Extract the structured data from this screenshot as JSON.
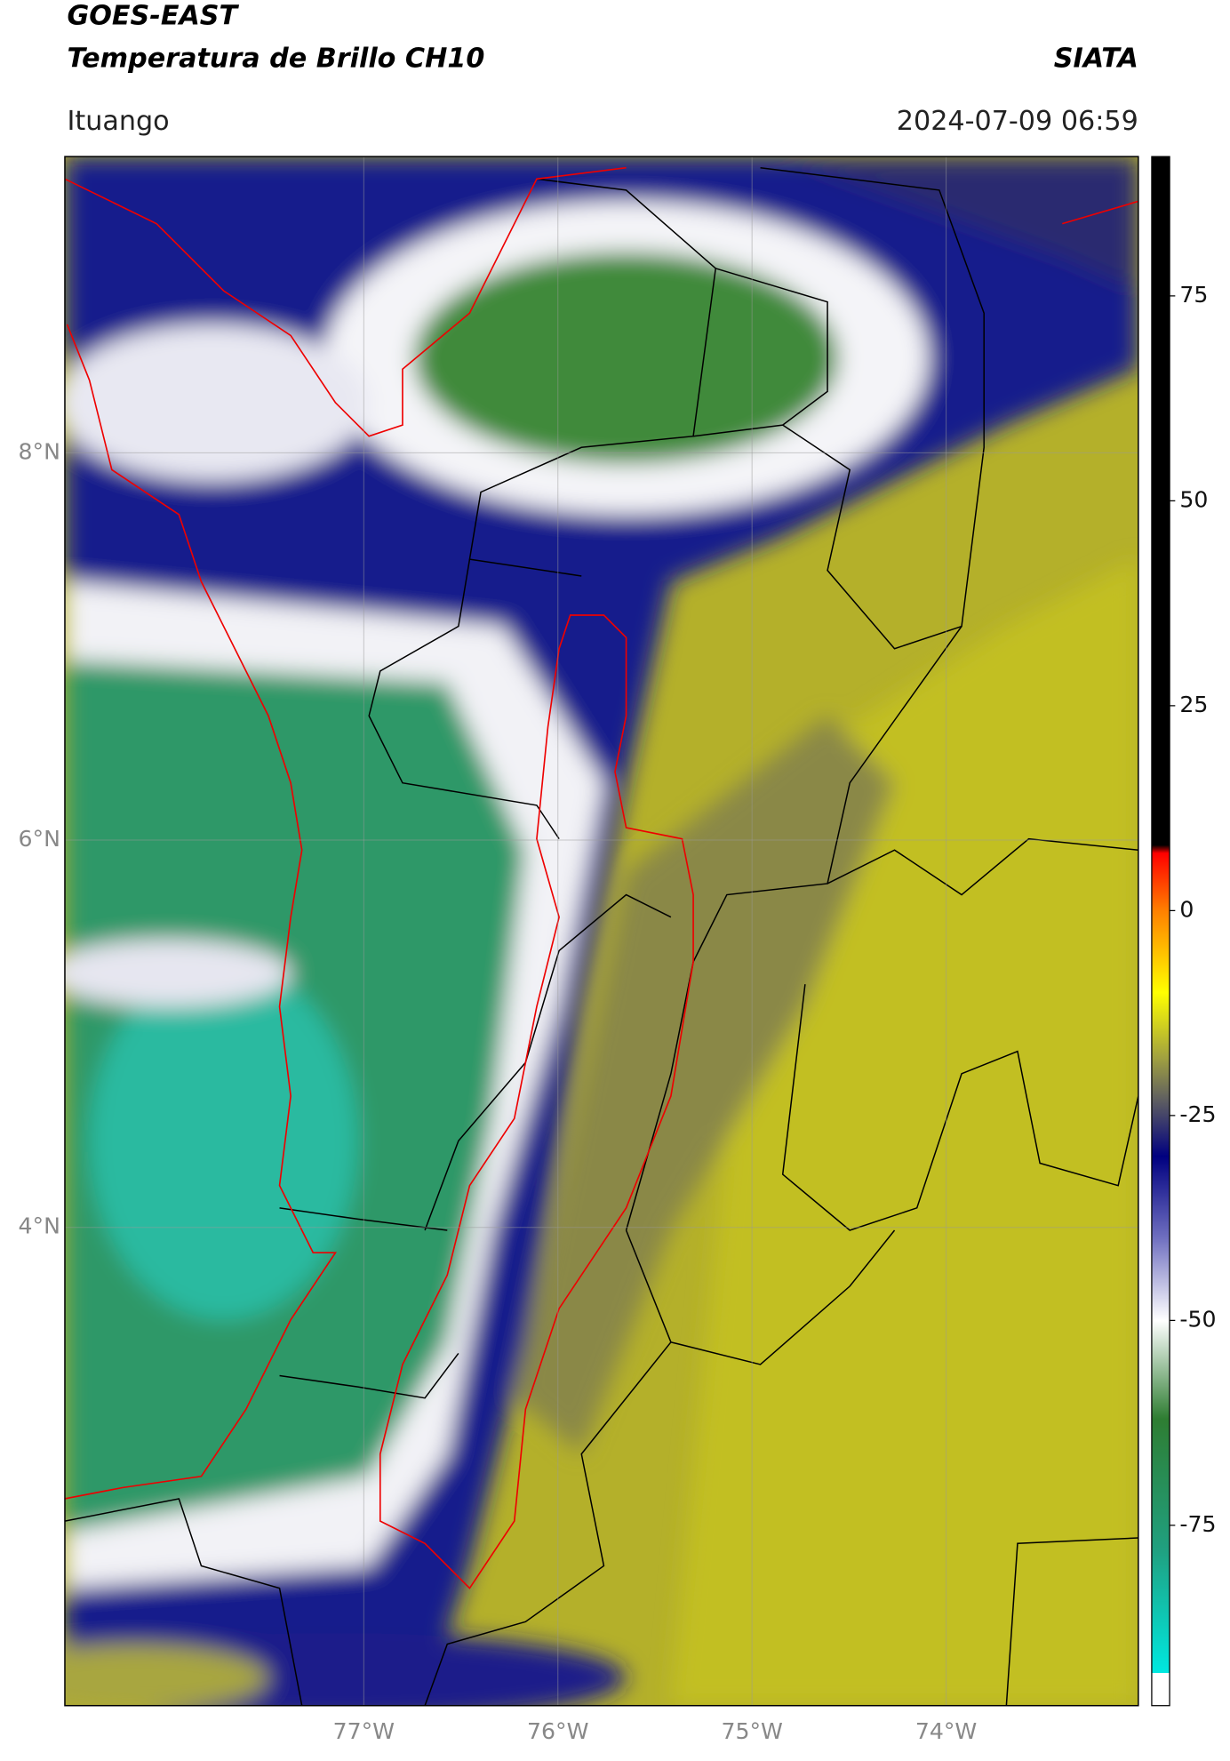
{
  "header": {
    "title": "GOES-EAST",
    "subtitle": "Temperatura de Brillo CH10",
    "source": "SIATA",
    "location": "Ituango",
    "datetime": "2024-07-09 06:59"
  },
  "chart_data": {
    "type": "map",
    "xlim": [
      -78.54,
      -73.01
    ],
    "ylim": [
      1.53,
      9.53
    ],
    "xticks": [
      {
        "value": -77,
        "label": "77°W"
      },
      {
        "value": -76,
        "label": "76°W"
      },
      {
        "value": -75,
        "label": "75°W"
      },
      {
        "value": -74,
        "label": "74°W"
      }
    ],
    "yticks": [
      {
        "value": 8,
        "label": "8°N"
      },
      {
        "value": 6,
        "label": "6°N"
      },
      {
        "value": 4,
        "label": "4°N"
      }
    ],
    "grid": true,
    "colorbar": {
      "lim": [
        -97,
        92
      ],
      "ticks": [
        75,
        50,
        25,
        0,
        -25,
        -50,
        -75
      ],
      "colors": [
        [
          -97,
          "#ffffff"
        ],
        [
          -93,
          "#ffffff"
        ],
        [
          -93,
          "#00e8e0"
        ],
        [
          -78,
          "#20a080"
        ],
        [
          -62,
          "#2e7d32"
        ],
        [
          -50,
          "#ffffff"
        ],
        [
          -40,
          "#7070c0"
        ],
        [
          -30,
          "#000080"
        ],
        [
          -23,
          "#606060"
        ],
        [
          -18,
          "#a0a040"
        ],
        [
          -10,
          "#ffff00"
        ],
        [
          0,
          "#ff8000"
        ],
        [
          7,
          "#ff0000"
        ],
        [
          8,
          "#000000"
        ],
        [
          92,
          "#000000"
        ]
      ]
    }
  }
}
